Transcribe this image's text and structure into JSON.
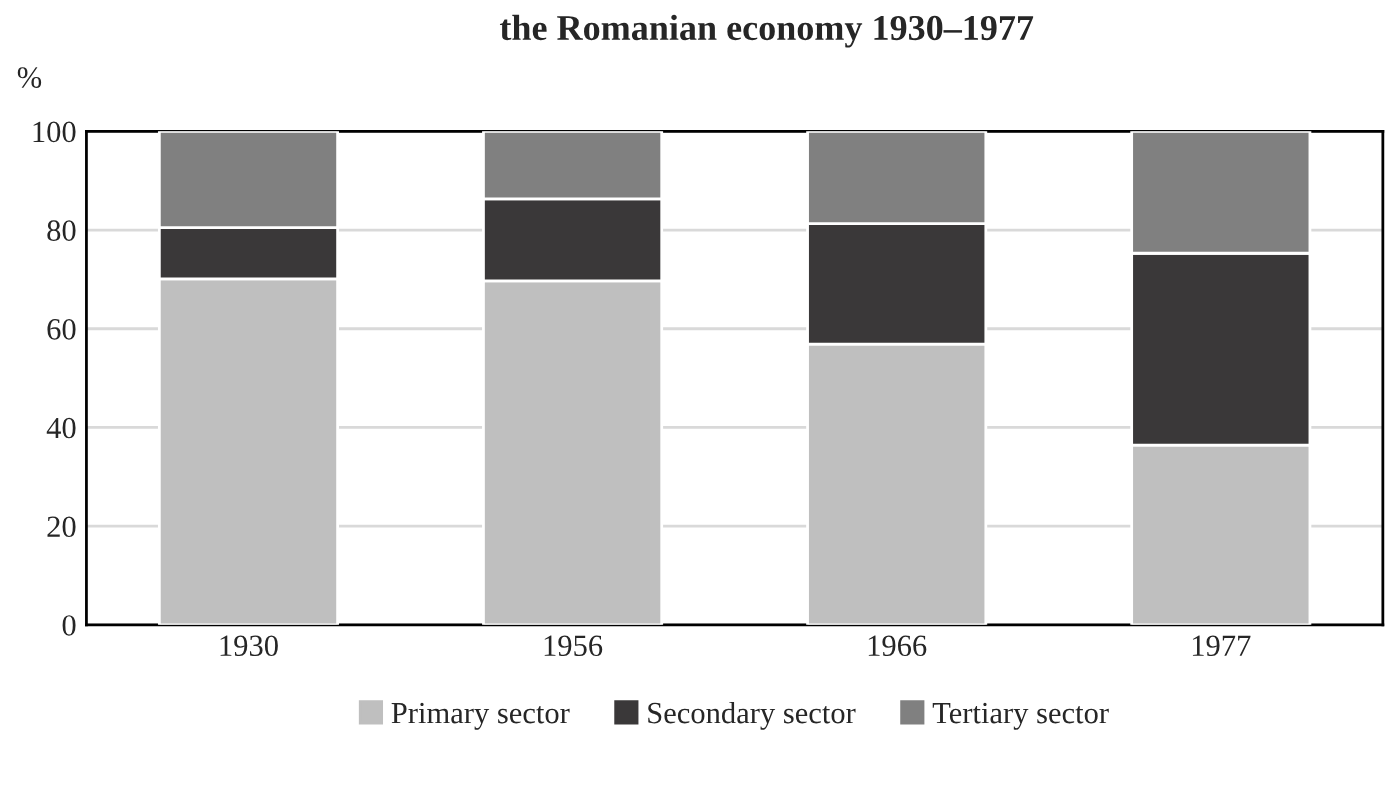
{
  "chart_data": {
    "type": "bar",
    "title": "the Romanian economy 1930–1977",
    "ylabel": "%",
    "categories": [
      "1930",
      "1956",
      "1966",
      "1977"
    ],
    "series": [
      {
        "name": "Primary sector",
        "color": "#bfbfbf",
        "values": [
          70.1,
          69.7,
          56.9,
          36.4
        ]
      },
      {
        "name": "Secondary sector",
        "color": "#3a3839",
        "values": [
          10.4,
          16.6,
          24.4,
          38.9
        ]
      },
      {
        "name": "Tertiary sector",
        "color": "#808080",
        "values": [
          19.5,
          13.7,
          18.7,
          24.7
        ]
      }
    ],
    "stacked": true,
    "ylim": [
      0,
      100
    ],
    "yticks": [
      0,
      20,
      40,
      60,
      80,
      100
    ],
    "grid": "y",
    "legend": "bottom"
  }
}
